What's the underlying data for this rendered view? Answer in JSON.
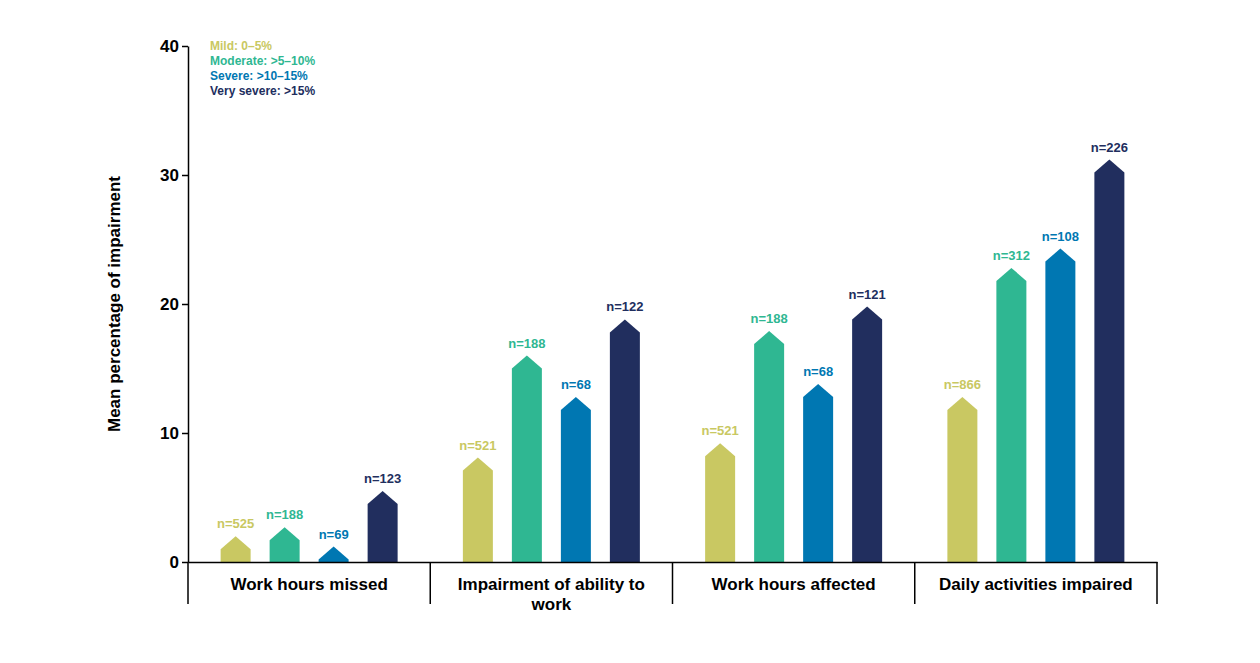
{
  "chart_data": {
    "type": "bar",
    "categories": [
      "Work hours missed",
      "Impairment of ability to work",
      "Work hours affected",
      "Daily activities impaired"
    ],
    "series": [
      {
        "name": "Mild: 0–5%",
        "color": "#c9c862",
        "values": [
          2.0,
          8.1,
          9.2,
          12.8
        ],
        "n_labels": [
          "n=525",
          "n=521",
          "n=521",
          "n=866"
        ]
      },
      {
        "name": "Moderate: >5–10%",
        "color": "#2fb792",
        "values": [
          2.7,
          16.0,
          17.9,
          22.8
        ],
        "n_labels": [
          "n=188",
          "n=188",
          "n=188",
          "n=312"
        ]
      },
      {
        "name": "Severe: >10–15%",
        "color": "#0077b2",
        "values": [
          1.2,
          12.8,
          13.8,
          24.3
        ],
        "n_labels": [
          "n=69",
          "n=68",
          "n=68",
          "n=108"
        ]
      },
      {
        "name": "Very severe: >15%",
        "color": "#212e5e",
        "values": [
          5.5,
          18.8,
          19.8,
          31.2
        ],
        "n_labels": [
          "n=123",
          "n=122",
          "n=121",
          "n=226"
        ]
      }
    ],
    "y_label": "Mean percentage of impairment",
    "ylim": [
      0,
      40
    ],
    "yticks": [
      0,
      10,
      20,
      30,
      40
    ],
    "grid": false,
    "legend": "top-left"
  }
}
